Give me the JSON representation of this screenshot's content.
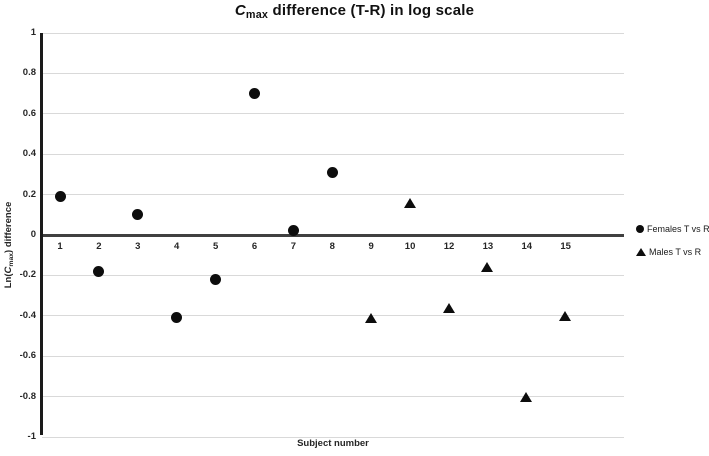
{
  "title": {
    "c": "C",
    "sub": "max",
    "rest": " difference (T-R) in log scale"
  },
  "axes": {
    "y_title": {
      "prefix": "Ln(",
      "c": "C",
      "sub": "max",
      "suffix": ") difference"
    },
    "x_title": "Subject number",
    "y_tick_labels": [
      "1",
      "0.8",
      "0.6",
      "0.4",
      "0.2",
      "0",
      "-0.2",
      "-0.4",
      "-0.6",
      "-0.8",
      "-1"
    ],
    "x_tick_labels": [
      "1",
      "2",
      "3",
      "4",
      "5",
      "6",
      "7",
      "8",
      "9",
      "10",
      "12",
      "13",
      "14",
      "15"
    ]
  },
  "legend": {
    "items": [
      {
        "marker": "circle",
        "label": "Females T vs R"
      },
      {
        "marker": "triangle",
        "label": "Males T vs R"
      }
    ]
  },
  "colors": {
    "marker": "#0d0d0d",
    "gridline": "#d9d9d9",
    "zero_line": "#404040",
    "axis_line": "#1a1a1a",
    "text": "#262626"
  },
  "chart_data": {
    "type": "scatter",
    "title": "Cmax difference (T-R) in log scale",
    "xlabel": "Subject number",
    "ylabel": "Ln(Cmax) difference",
    "ylim": [
      -1,
      1
    ],
    "ytick_step": 0.2,
    "grid": "horizontal",
    "zero_axis_emphasized": true,
    "legend_position": "right",
    "categories": [
      "1",
      "2",
      "3",
      "4",
      "5",
      "6",
      "7",
      "8",
      "9",
      "10",
      "12",
      "13",
      "14",
      "15"
    ],
    "series": [
      {
        "name": "Females T vs R",
        "marker": "circle",
        "points": [
          {
            "x": "1",
            "y": 0.19
          },
          {
            "x": "2",
            "y": -0.18
          },
          {
            "x": "3",
            "y": 0.1
          },
          {
            "x": "4",
            "y": -0.41
          },
          {
            "x": "5",
            "y": -0.22
          },
          {
            "x": "6",
            "y": 0.7
          },
          {
            "x": "7",
            "y": 0.02
          },
          {
            "x": "8",
            "y": 0.31
          }
        ]
      },
      {
        "name": "Males T vs R",
        "marker": "triangle",
        "points": [
          {
            "x": "9",
            "y": -0.41
          },
          {
            "x": "10",
            "y": 0.16
          },
          {
            "x": "12",
            "y": -0.36
          },
          {
            "x": "13",
            "y": -0.16
          },
          {
            "x": "14",
            "y": -0.8
          },
          {
            "x": "15",
            "y": -0.4
          }
        ]
      }
    ]
  }
}
